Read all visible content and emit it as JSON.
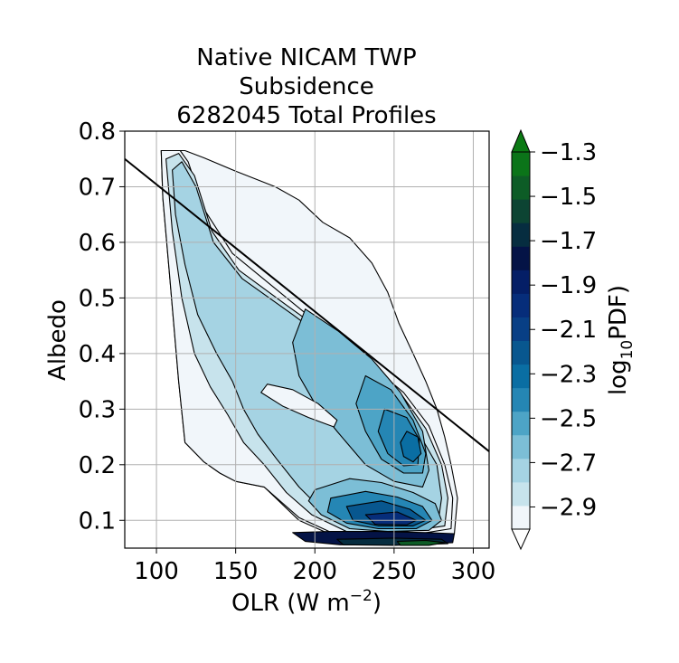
{
  "chart_data": {
    "type": "contourf",
    "title": [
      "Native NICAM TWP",
      "Subsidence",
      "6282045 Total Profiles"
    ],
    "xlabel": "OLR (W m",
    "xlabel_sup": "−2",
    "xlabel_close": ")",
    "ylabel": "Albedo",
    "xlim": [
      80,
      310
    ],
    "ylim": [
      0.05,
      0.8
    ],
    "xticks": [
      100,
      150,
      200,
      250,
      300
    ],
    "yticks": [
      0.1,
      0.2,
      0.3,
      0.4,
      0.5,
      0.6,
      0.7,
      0.8
    ],
    "xtick_labels": [
      "100",
      "150",
      "200",
      "250",
      "300"
    ],
    "ytick_labels": [
      "0.1",
      "0.2",
      "0.3",
      "0.4",
      "0.5",
      "0.6",
      "0.7",
      "0.8"
    ],
    "grid": true,
    "reference_line": [
      [
        80,
        0.75
      ],
      [
        310,
        0.224
      ]
    ],
    "colorbar": {
      "label": "log",
      "label_sub": "10",
      "label_suffix": "PDF)",
      "range": [
        -3.0,
        -1.3
      ],
      "extend": "both",
      "ticks": [
        -2.9,
        -2.7,
        -2.5,
        -2.3,
        -2.1,
        -1.9,
        -1.7,
        -1.5,
        -1.3
      ],
      "tick_labels": [
        "−2.9",
        "−2.7",
        "−2.5",
        "−2.3",
        "−2.1",
        "−1.9",
        "−1.7",
        "−1.5",
        "−1.3"
      ],
      "colors": [
        "#f1f6fa",
        "#c7e3ec",
        "#a5d3e3",
        "#7cbed6",
        "#4da4c6",
        "#2586b4",
        "#0a6ea3",
        "#08578f",
        "#083f85",
        "#062d7a",
        "#041e66",
        "#041346",
        "#062d40",
        "#0c4433",
        "#0d5c26",
        "#0b7419"
      ],
      "over_color": "#0b7a14",
      "under_color": "#ffffff"
    },
    "contour_regions": [
      {
        "level": -3.0,
        "polygon": [
          [
            103,
            0.765
          ],
          [
            118,
            0.765
          ],
          [
            130,
            0.752
          ],
          [
            150,
            0.728
          ],
          [
            175,
            0.7
          ],
          [
            190,
            0.676
          ],
          [
            205,
            0.636
          ],
          [
            222,
            0.608
          ],
          [
            236,
            0.563
          ],
          [
            246,
            0.51
          ],
          [
            253,
            0.455
          ],
          [
            262,
            0.4
          ],
          [
            270,
            0.35
          ],
          [
            277,
            0.3
          ],
          [
            282,
            0.25
          ],
          [
            286,
            0.2
          ],
          [
            290,
            0.14
          ],
          [
            288,
            0.075
          ],
          [
            262,
            0.068
          ],
          [
            212,
            0.072
          ],
          [
            190,
            0.1
          ],
          [
            168,
            0.16
          ],
          [
            150,
            0.17
          ],
          [
            140,
            0.185
          ],
          [
            130,
            0.205
          ],
          [
            118,
            0.24
          ],
          [
            114,
            0.35
          ],
          [
            108,
            0.55
          ],
          [
            104,
            0.68
          ]
        ]
      },
      {
        "level": -2.9,
        "polygon": [
          [
            103,
            0.765
          ],
          [
            115,
            0.765
          ],
          [
            120,
            0.745
          ],
          [
            130,
            0.66
          ],
          [
            148,
            0.58
          ],
          [
            178,
            0.51
          ],
          [
            208,
            0.44
          ],
          [
            235,
            0.38
          ],
          [
            256,
            0.33
          ],
          [
            272,
            0.27
          ],
          [
            282,
            0.2
          ],
          [
            287,
            0.14
          ],
          [
            286,
            0.085
          ],
          [
            262,
            0.074
          ],
          [
            212,
            0.076
          ],
          [
            190,
            0.105
          ],
          [
            168,
            0.16
          ],
          [
            150,
            0.17
          ],
          [
            140,
            0.185
          ],
          [
            130,
            0.205
          ],
          [
            118,
            0.24
          ],
          [
            114,
            0.35
          ],
          [
            108,
            0.55
          ],
          [
            104,
            0.68
          ]
        ]
      },
      {
        "level": -2.8,
        "polygon": [
          [
            106,
            0.75
          ],
          [
            114,
            0.76
          ],
          [
            124,
            0.72
          ],
          [
            135,
            0.62
          ],
          [
            152,
            0.55
          ],
          [
            183,
            0.485
          ],
          [
            210,
            0.43
          ],
          [
            234,
            0.375
          ],
          [
            255,
            0.325
          ],
          [
            270,
            0.265
          ],
          [
            280,
            0.2
          ],
          [
            284,
            0.14
          ],
          [
            282,
            0.09
          ],
          [
            258,
            0.08
          ],
          [
            220,
            0.08
          ],
          [
            198,
            0.11
          ],
          [
            182,
            0.15
          ],
          [
            168,
            0.2
          ],
          [
            155,
            0.24
          ],
          [
            145,
            0.29
          ],
          [
            134,
            0.34
          ],
          [
            124,
            0.4
          ],
          [
            116,
            0.5
          ],
          [
            110,
            0.62
          ]
        ]
      },
      {
        "level": -2.7,
        "polygon": [
          [
            110,
            0.73
          ],
          [
            116,
            0.745
          ],
          [
            125,
            0.7
          ],
          [
            136,
            0.6
          ],
          [
            154,
            0.535
          ],
          [
            186,
            0.47
          ],
          [
            212,
            0.415
          ],
          [
            234,
            0.36
          ],
          [
            252,
            0.31
          ],
          [
            266,
            0.255
          ],
          [
            277,
            0.2
          ],
          [
            280,
            0.14
          ],
          [
            278,
            0.1
          ],
          [
            256,
            0.085
          ],
          [
            224,
            0.085
          ],
          [
            204,
            0.12
          ],
          [
            190,
            0.16
          ],
          [
            176,
            0.21
          ],
          [
            164,
            0.255
          ],
          [
            155,
            0.3
          ],
          [
            148,
            0.35
          ],
          [
            138,
            0.4
          ],
          [
            126,
            0.47
          ],
          [
            118,
            0.56
          ],
          [
            112,
            0.65
          ]
        ]
      },
      {
        "level": -2.6,
        "polygon": [
          [
            194,
            0.48
          ],
          [
            215,
            0.44
          ],
          [
            236,
            0.39
          ],
          [
            254,
            0.33
          ],
          [
            268,
            0.26
          ],
          [
            272,
            0.19
          ],
          [
            268,
            0.16
          ],
          [
            250,
            0.17
          ],
          [
            232,
            0.2
          ],
          [
            214,
            0.26
          ],
          [
            200,
            0.31
          ],
          [
            190,
            0.36
          ],
          [
            186,
            0.42
          ]
        ]
      },
      {
        "level": -2.5,
        "polygon": [
          [
            232,
            0.36
          ],
          [
            248,
            0.335
          ],
          [
            262,
            0.28
          ],
          [
            270,
            0.22
          ],
          [
            268,
            0.185
          ],
          [
            256,
            0.185
          ],
          [
            242,
            0.21
          ],
          [
            232,
            0.26
          ],
          [
            226,
            0.31
          ]
        ]
      },
      {
        "level": -2.4,
        "polygon": [
          [
            244,
            0.3
          ],
          [
            258,
            0.285
          ],
          [
            266,
            0.245
          ],
          [
            265,
            0.2
          ],
          [
            256,
            0.198
          ],
          [
            246,
            0.22
          ],
          [
            240,
            0.26
          ]
        ]
      },
      {
        "level": -2.3,
        "polygon": [
          [
            258,
            0.26
          ],
          [
            265,
            0.25
          ],
          [
            267,
            0.22
          ],
          [
            262,
            0.205
          ],
          [
            256,
            0.215
          ],
          [
            254,
            0.24
          ]
        ]
      },
      {
        "level": -2.6,
        "polygon": [
          [
            200,
            0.155
          ],
          [
            222,
            0.175
          ],
          [
            242,
            0.168
          ],
          [
            262,
            0.15
          ],
          [
            276,
            0.13
          ],
          [
            280,
            0.1
          ],
          [
            272,
            0.082
          ],
          [
            246,
            0.08
          ],
          [
            222,
            0.085
          ],
          [
            204,
            0.11
          ],
          [
            196,
            0.135
          ]
        ]
      },
      {
        "level": -2.4,
        "polygon": [
          [
            210,
            0.14
          ],
          [
            232,
            0.152
          ],
          [
            252,
            0.142
          ],
          [
            268,
            0.125
          ],
          [
            274,
            0.1
          ],
          [
            264,
            0.085
          ],
          [
            240,
            0.085
          ],
          [
            220,
            0.095
          ],
          [
            208,
            0.115
          ]
        ]
      },
      {
        "level": -2.2,
        "polygon": [
          [
            220,
            0.125
          ],
          [
            242,
            0.135
          ],
          [
            260,
            0.12
          ],
          [
            270,
            0.1
          ],
          [
            262,
            0.09
          ],
          [
            240,
            0.09
          ],
          [
            224,
            0.1
          ]
        ]
      },
      {
        "level": -2.0,
        "polygon": [
          [
            232,
            0.11
          ],
          [
            252,
            0.115
          ],
          [
            264,
            0.1
          ],
          [
            258,
            0.092
          ],
          [
            238,
            0.093
          ]
        ]
      },
      {
        "level": -1.8,
        "polygon": [
          [
            186,
            0.078
          ],
          [
            210,
            0.08
          ],
          [
            240,
            0.08
          ],
          [
            270,
            0.078
          ],
          [
            288,
            0.076
          ],
          [
            287,
            0.06
          ],
          [
            256,
            0.056
          ],
          [
            216,
            0.056
          ],
          [
            194,
            0.062
          ]
        ]
      },
      {
        "level": -1.7,
        "polygon": [
          [
            214,
            0.066
          ],
          [
            250,
            0.068
          ],
          [
            280,
            0.066
          ],
          [
            284,
            0.058
          ],
          [
            250,
            0.055
          ],
          [
            218,
            0.056
          ]
        ]
      },
      {
        "level": -1.5,
        "polygon": [
          [
            252,
            0.062
          ],
          [
            270,
            0.064
          ],
          [
            282,
            0.06
          ],
          [
            272,
            0.055
          ],
          [
            254,
            0.055
          ]
        ]
      },
      {
        "level": -3.0,
        "polygon": [
          [
            170,
            0.345
          ],
          [
            186,
            0.335
          ],
          [
            202,
            0.31
          ],
          [
            214,
            0.28
          ],
          [
            212,
            0.268
          ],
          [
            196,
            0.285
          ],
          [
            180,
            0.305
          ],
          [
            166,
            0.33
          ]
        ]
      }
    ]
  }
}
